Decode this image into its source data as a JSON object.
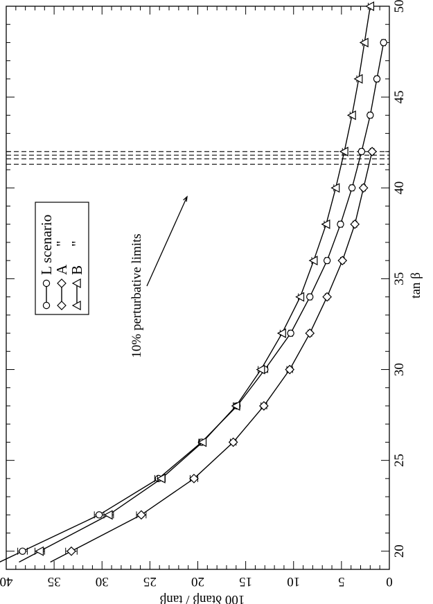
{
  "chart_data": {
    "type": "line",
    "orientation": "rotated 90 degrees counter-clockwise",
    "xlabel": "tan β",
    "ylabel": "100 δtanβ / tanβ",
    "xlim": [
      19,
      50
    ],
    "ylim": [
      0,
      40
    ],
    "x_ticks": [
      20,
      25,
      30,
      35,
      40,
      45,
      50
    ],
    "y_ticks": [
      0,
      5,
      10,
      15,
      20,
      25,
      30,
      35,
      40
    ],
    "x_tick_labels": [
      "20",
      "25",
      "30",
      "35",
      "40",
      "45",
      "50"
    ],
    "y_tick_labels": [
      "0",
      "5",
      "10",
      "15",
      "20",
      "25",
      "30",
      "35",
      "40"
    ],
    "series": [
      {
        "name": "L scenario",
        "marker": "circle",
        "points": [
          {
            "x": 20,
            "y": 38.3,
            "err": 0.5
          },
          {
            "x": 22,
            "y": 30.3,
            "err": 0.5
          },
          {
            "x": 24,
            "y": 24.1,
            "err": 0.4
          },
          {
            "x": 26,
            "y": 19.6,
            "err": 0.3
          },
          {
            "x": 28,
            "y": 15.9,
            "err": 0.3
          },
          {
            "x": 30,
            "y": 13.0,
            "err": 0.3
          },
          {
            "x": 32,
            "y": 10.3,
            "err": 0.2
          },
          {
            "x": 34,
            "y": 8.3,
            "err": 0.2
          },
          {
            "x": 36,
            "y": 6.5,
            "err": 0.2
          },
          {
            "x": 38,
            "y": 5.1,
            "err": 0.2
          },
          {
            "x": 40,
            "y": 3.9,
            "err": 0.2
          },
          {
            "x": 42,
            "y": 2.9,
            "err": 0.2
          },
          {
            "x": 44,
            "y": 2.0,
            "err": 0.2
          },
          {
            "x": 46,
            "y": 1.3,
            "err": 0.2
          },
          {
            "x": 48,
            "y": 0.6,
            "err": 0.2
          }
        ]
      },
      {
        "name": "A",
        "marker": "diamond",
        "points": [
          {
            "x": 20,
            "y": 33.2,
            "err": 0.6
          },
          {
            "x": 22,
            "y": 25.9,
            "err": 0.5
          },
          {
            "x": 24,
            "y": 20.4,
            "err": 0.4
          },
          {
            "x": 26,
            "y": 16.3,
            "err": 0.3
          },
          {
            "x": 28,
            "y": 13.1,
            "err": 0.3
          },
          {
            "x": 30,
            "y": 10.4,
            "err": 0.3
          },
          {
            "x": 32,
            "y": 8.3,
            "err": 0.2
          },
          {
            "x": 34,
            "y": 6.5,
            "err": 0.2
          },
          {
            "x": 36,
            "y": 4.9,
            "err": 0.2
          },
          {
            "x": 38,
            "y": 3.6,
            "err": 0.2
          },
          {
            "x": 40,
            "y": 2.7,
            "err": 0.2
          },
          {
            "x": 42,
            "y": 1.8,
            "err": 0.2
          }
        ]
      },
      {
        "name": "B",
        "marker": "triangle",
        "points": [
          {
            "x": 20,
            "y": 36.5,
            "err": 0.5
          },
          {
            "x": 22,
            "y": 29.3,
            "err": 0.5
          },
          {
            "x": 24,
            "y": 23.8,
            "err": 0.4
          },
          {
            "x": 26,
            "y": 19.5,
            "err": 0.3
          },
          {
            "x": 28,
            "y": 16.0,
            "err": 0.3
          },
          {
            "x": 30,
            "y": 13.4,
            "err": 0.3
          },
          {
            "x": 32,
            "y": 11.2,
            "err": 0.2
          },
          {
            "x": 34,
            "y": 9.3,
            "err": 0.2
          },
          {
            "x": 36,
            "y": 7.9,
            "err": 0.2
          },
          {
            "x": 38,
            "y": 6.6,
            "err": 0.2
          },
          {
            "x": 40,
            "y": 5.6,
            "err": 0.2
          },
          {
            "x": 42,
            "y": 4.7,
            "err": 0.2
          },
          {
            "x": 44,
            "y": 3.9,
            "err": 0.2
          },
          {
            "x": 46,
            "y": 3.2,
            "err": 0.2
          },
          {
            "x": 48,
            "y": 2.6,
            "err": 0.2
          },
          {
            "x": 50,
            "y": 2.0,
            "err": 0.2
          }
        ]
      }
    ],
    "reference_lines": {
      "style": "dashed",
      "x_values": [
        41.3,
        41.6,
        41.8,
        42.0
      ]
    },
    "legend": {
      "position": "top-left",
      "entries": [
        {
          "label": "L scenario",
          "marker": "circle",
          "ditto": ""
        },
        {
          "label": "A",
          "marker": "diamond",
          "ditto": "\""
        },
        {
          "label": "B",
          "marker": "triangle",
          "ditto": "\""
        }
      ]
    },
    "annotation": {
      "text": "10% perturbative limits",
      "arrow": true
    }
  }
}
